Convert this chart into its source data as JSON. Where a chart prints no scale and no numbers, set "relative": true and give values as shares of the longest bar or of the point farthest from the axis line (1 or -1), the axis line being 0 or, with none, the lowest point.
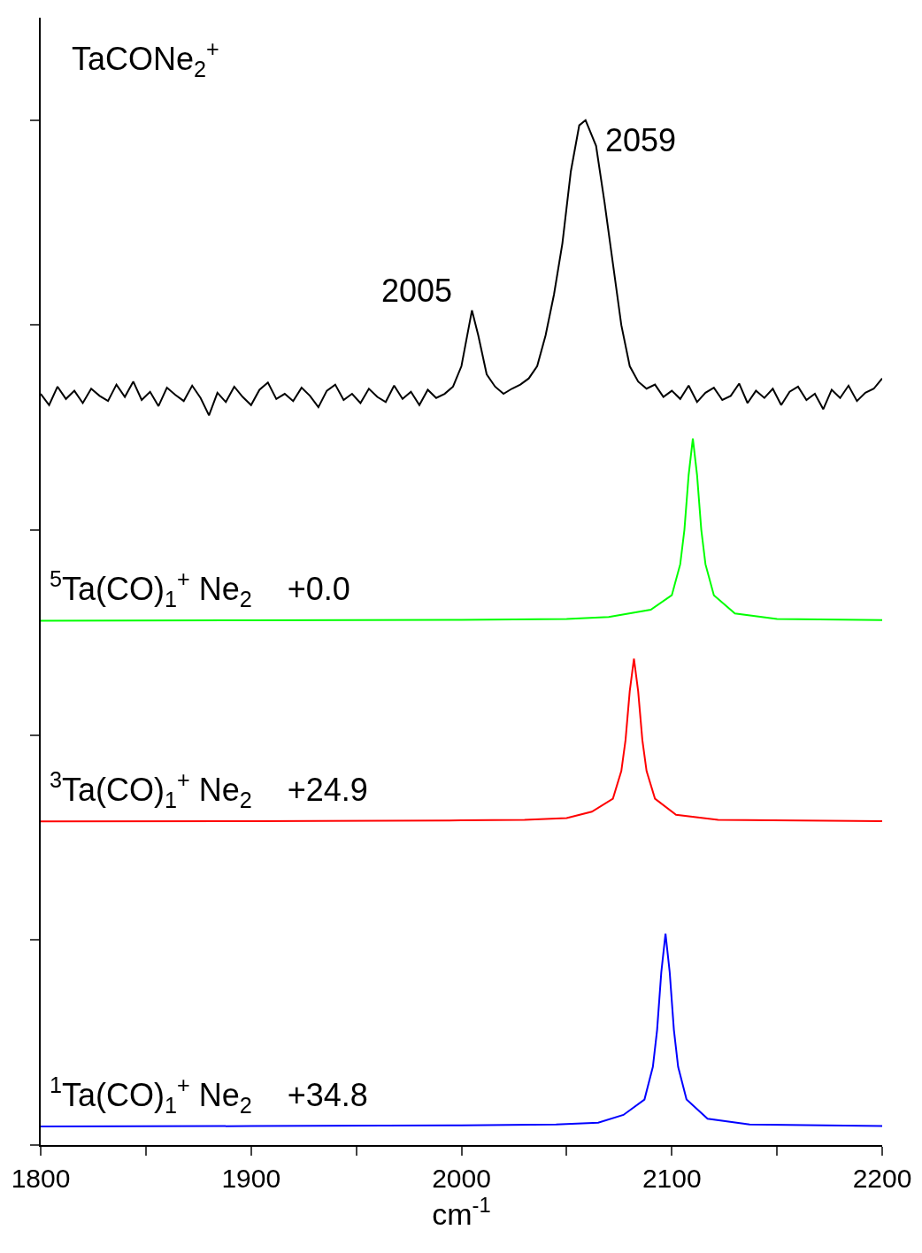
{
  "chart_data": {
    "type": "line",
    "relative": true,
    "title": "TaCONe$_{2}$$^{+}$",
    "xlabel": "cm$^{-1}$",
    "xlim": [
      1800,
      2200
    ],
    "xticks": [
      1800,
      {
        "value": 1850,
        "label": null
      },
      1900,
      {
        "value": 1950,
        "label": null
      },
      2000,
      {
        "value": 2050,
        "label": null
      },
      2100,
      {
        "value": 2150,
        "label": null
      },
      2200
    ],
    "legend": false,
    "series": [
      {
        "color": "#000000",
        "x": [
          1800,
          1804,
          1808,
          1812,
          1816,
          1820,
          1824,
          1828,
          1832,
          1836,
          1840,
          1844,
          1848,
          1852,
          1856,
          1860,
          1864,
          1868,
          1872,
          1876,
          1880,
          1884,
          1888,
          1892,
          1896,
          1900,
          1904,
          1908,
          1912,
          1916,
          1920,
          1924,
          1928,
          1932,
          1936,
          1940,
          1944,
          1948,
          1952,
          1956,
          1960,
          1964,
          1968,
          1972,
          1976,
          1980,
          1984,
          1988,
          1992,
          1996,
          2000,
          2005,
          2008,
          2012,
          2016,
          2020,
          2024,
          2028,
          2032,
          2036,
          2040,
          2044,
          2048,
          2052,
          2056,
          2059,
          2064,
          2068,
          2072,
          2076,
          2080,
          2084,
          2088,
          2092,
          2096,
          2100,
          2104,
          2108,
          2112,
          2116,
          2120,
          2124,
          2128,
          2132,
          2136,
          2140,
          2144,
          2148,
          2152,
          2156,
          2160,
          2164,
          2168,
          2172,
          2176,
          2180,
          2184,
          2188,
          2192,
          2196,
          2200
        ],
        "values": [
          0.733,
          0.722,
          0.74,
          0.728,
          0.736,
          0.724,
          0.738,
          0.731,
          0.726,
          0.742,
          0.73,
          0.745,
          0.727,
          0.735,
          0.721,
          0.739,
          0.732,
          0.726,
          0.741,
          0.729,
          0.712,
          0.734,
          0.725,
          0.74,
          0.73,
          0.722,
          0.737,
          0.744,
          0.728,
          0.733,
          0.726,
          0.739,
          0.731,
          0.72,
          0.736,
          0.742,
          0.727,
          0.733,
          0.724,
          0.738,
          0.73,
          0.725,
          0.741,
          0.728,
          0.735,
          0.722,
          0.737,
          0.729,
          0.733,
          0.74,
          0.76,
          0.8145,
          0.79,
          0.752,
          0.74,
          0.733,
          0.738,
          0.742,
          0.748,
          0.76,
          0.79,
          0.83,
          0.88,
          0.95,
          0.995,
          1.0,
          0.975,
          0.92,
          0.86,
          0.8,
          0.76,
          0.745,
          0.738,
          0.742,
          0.73,
          0.736,
          0.728,
          0.741,
          0.725,
          0.734,
          0.739,
          0.727,
          0.731,
          0.743,
          0.724,
          0.736,
          0.729,
          0.738,
          0.722,
          0.735,
          0.74,
          0.727,
          0.733,
          0.718,
          0.737,
          0.729,
          0.741,
          0.726,
          0.734,
          0.738,
          0.748
        ]
      },
      {
        "name": "$^{5}$Ta(CO)$_{1}$$^{+}$ Ne$_{2}$    +0.0",
        "color": "#00ff00",
        "x": [
          1800,
          1900,
          2000,
          2050,
          2070,
          2090,
          2100,
          2104,
          2106,
          2108,
          2110,
          2112,
          2114,
          2116,
          2120,
          2130,
          2150,
          2200
        ],
        "values": [
          0.5116,
          0.512,
          0.5125,
          0.5134,
          0.5152,
          0.5223,
          0.5365,
          0.5667,
          0.6005,
          0.6538,
          0.6894,
          0.6538,
          0.6005,
          0.5667,
          0.5365,
          0.5187,
          0.5134,
          0.5123
        ]
      },
      {
        "name": "$^{3}$Ta(CO)$_{1}$$^{+}$ Ne$_{2}$    +24.9",
        "color": "#ff0000",
        "x": [
          1800,
          1900,
          2000,
          2030,
          2050,
          2062,
          2072,
          2076,
          2078,
          2080,
          2082,
          2084,
          2086,
          2088,
          2092,
          2102,
          2122,
          2200
        ],
        "values": [
          0.3158,
          0.3161,
          0.3168,
          0.3174,
          0.319,
          0.3253,
          0.338,
          0.365,
          0.3952,
          0.4428,
          0.4746,
          0.4428,
          0.3952,
          0.365,
          0.338,
          0.3222,
          0.3174,
          0.3161
        ]
      },
      {
        "name": "$^{1}$Ta(CO)$_{1}$$^{+}$ Ne$_{2}$    +34.8",
        "color": "#0000ff",
        "x": [
          1800,
          1900,
          2000,
          2045,
          2065,
          2077,
          2087,
          2091,
          2093,
          2095,
          2097,
          2099,
          2101,
          2103,
          2107,
          2117,
          2137,
          2200
        ],
        "values": [
          0.0181,
          0.0185,
          0.0192,
          0.02,
          0.0219,
          0.0294,
          0.0444,
          0.0764,
          0.1122,
          0.1686,
          0.2062,
          0.1686,
          0.1122,
          0.0764,
          0.0444,
          0.0256,
          0.02,
          0.0185
        ]
      }
    ],
    "annotations": [
      {
        "text": "2005",
        "x": 2005,
        "y": 0.8145
      },
      {
        "text": "2059",
        "x": 2059,
        "y": 1.0
      }
    ]
  }
}
